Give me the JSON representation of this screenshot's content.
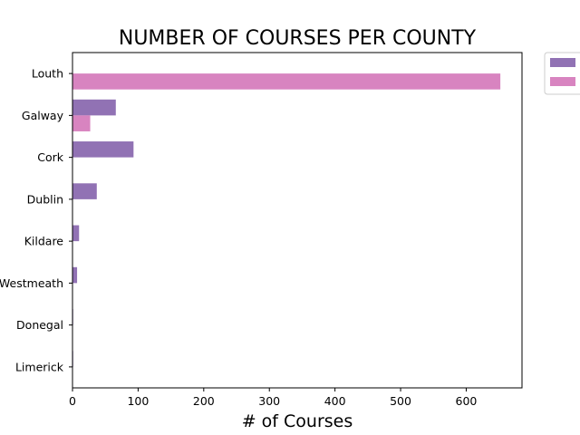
{
  "chart_data": {
    "type": "bar",
    "orientation": "horizontal",
    "title": "NUMBER OF COURSES PER COUNTY",
    "xlabel": "# of Courses",
    "ylabel": "",
    "categories": [
      "Louth",
      "Galway",
      "Cork",
      "Dublin",
      "Kildare",
      "Westmeath",
      "Donegal",
      "Limerick"
    ],
    "series": [
      {
        "name": "",
        "color": "#9172b4",
        "values": [
          0,
          66,
          93,
          37,
          10,
          7,
          1,
          1
        ]
      },
      {
        "name": "",
        "color": "#d884c0",
        "values": [
          652,
          27,
          0,
          0,
          0,
          0,
          0,
          0
        ]
      }
    ],
    "xlim": [
      0,
      685
    ],
    "xticks": [
      0,
      100,
      200,
      300,
      400,
      500,
      600
    ],
    "grid": false,
    "legend_position": "outside-top-right"
  }
}
